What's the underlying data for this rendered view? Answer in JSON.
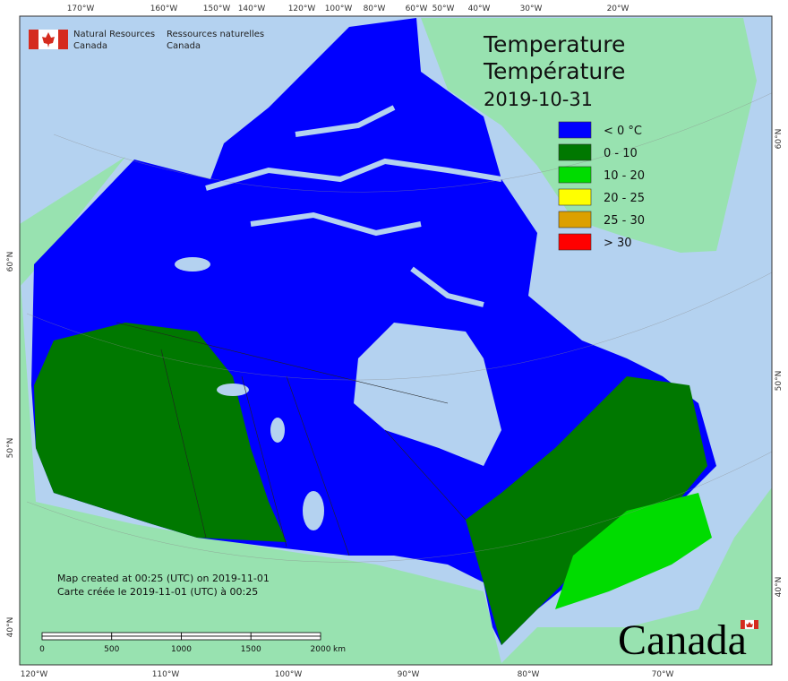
{
  "header": {
    "agency_en": [
      "Natural Resources",
      "Canada"
    ],
    "agency_fr": [
      "Ressources naturelles",
      "Canada"
    ]
  },
  "title": [
    "Temperature",
    "Température"
  ],
  "date": "2019-10-31",
  "legend": [
    {
      "label": "< 0 °C",
      "color": "#0000ff"
    },
    {
      "label": "0 - 10",
      "color": "#007800"
    },
    {
      "label": "10 - 20",
      "color": "#00dc00"
    },
    {
      "label": "20 - 25",
      "color": "#ffff00"
    },
    {
      "label": "25 - 30",
      "color": "#dca000"
    },
    {
      "label": "> 30",
      "color": "#ff0000"
    }
  ],
  "graticule": {
    "top": [
      "170°W",
      "160°W",
      "150°W",
      "140°W",
      "120°W",
      "100°W",
      "80°W",
      "60°W",
      "50°W",
      "40°W",
      "30°W",
      "20°W"
    ],
    "bottom": [
      "120°W",
      "110°W",
      "100°W",
      "90°W",
      "80°W",
      "70°W"
    ],
    "left": [
      "60°N",
      "50°N",
      "40°N"
    ],
    "right": [
      "60°N",
      "50°N",
      "40°N"
    ]
  },
  "credits": [
    "Map created at 00:25 (UTC) on 2019-11-01",
    "Carte créée le 2019-11-01 (UTC) à 00:25"
  ],
  "scale": {
    "ticks": [
      0,
      500,
      1000,
      1500,
      2000
    ],
    "unit": "km"
  },
  "wordmark": "Canada"
}
